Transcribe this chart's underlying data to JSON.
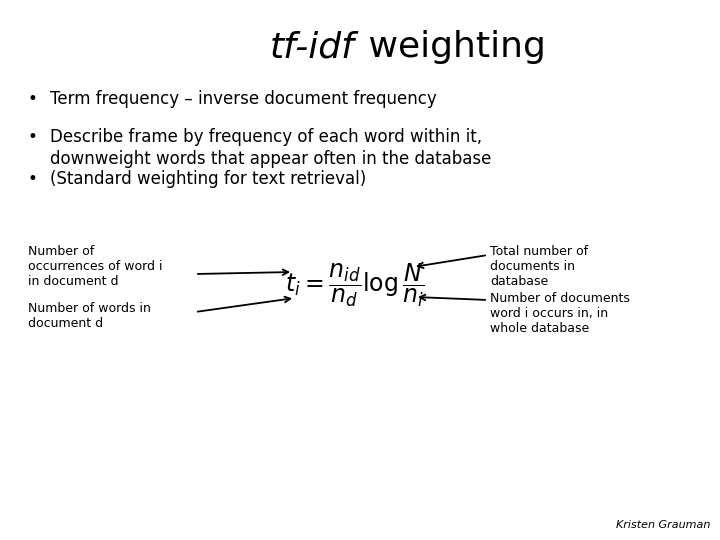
{
  "title_italic_part": "tf-idf",
  "title_normal_part": " weighting",
  "bullet1": "Term frequency – inverse document frequency",
  "bullet2a": "Describe frame by frequency of each word within it,",
  "bullet2b": "downweight words that appear often in the database",
  "bullet3": "(Standard weighting for text retrieval)",
  "formula": "$t_i = \\dfrac{n_{id}}{n_d} \\log \\dfrac{N}{n_i}$",
  "label_nid": "Number of\noccurrences of word i\nin document d",
  "label_nd": "Number of words in\ndocument d",
  "label_N": "Total number of\ndocuments in\ndatabase",
  "label_ni": "Number of documents\nword i occurs in, in\nwhole database",
  "credit": "Kristen Grauman",
  "bg_color": "#ffffff",
  "text_color": "#000000",
  "title_fontsize": 26,
  "bullet_fontsize": 12,
  "label_fontsize": 9,
  "credit_fontsize": 8
}
